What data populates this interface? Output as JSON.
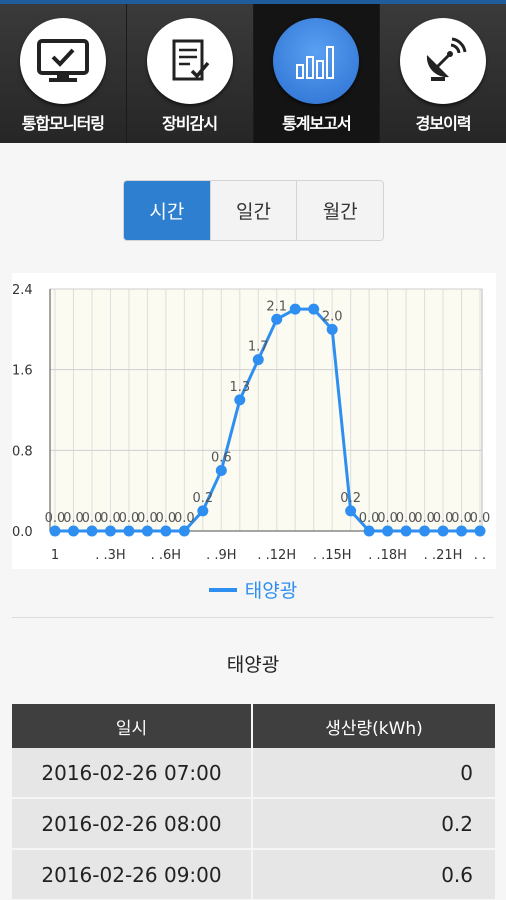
{
  "nav": {
    "items": [
      {
        "label": "통합모니터링",
        "icon": "monitor-check-icon",
        "active": false
      },
      {
        "label": "장비감시",
        "icon": "checklist-icon",
        "active": false
      },
      {
        "label": "통계보고서",
        "icon": "bar-chart-icon",
        "active": true
      },
      {
        "label": "경보이력",
        "icon": "satellite-dish-icon",
        "active": false
      }
    ]
  },
  "segment": {
    "tabs": [
      {
        "label": "시간",
        "active": true
      },
      {
        "label": "일간",
        "active": false
      },
      {
        "label": "월간",
        "active": false
      }
    ]
  },
  "colors": {
    "accent": "#2f7fd0",
    "series": "#2e8ff0",
    "nav_bg": "#2b2b2b",
    "header_bg": "#3f3f3f"
  },
  "chart_data": {
    "type": "line",
    "y_ticks": [
      "2.4",
      "1.6",
      "0.8",
      "0.0"
    ],
    "ylim": [
      0,
      2.4
    ],
    "x_tick_labels": [
      "1",
      ". .3H",
      ". .6H",
      ". .9H",
      ". .12H",
      ". .15H",
      ". .18H",
      ". .21H",
      ". ."
    ],
    "grid": true,
    "legend_position": "bottom",
    "series": [
      {
        "name": "태양광",
        "x": [
          0,
          1,
          2,
          3,
          4,
          5,
          6,
          7,
          8,
          9,
          10,
          11,
          12,
          13,
          14,
          15,
          16,
          17,
          18,
          19,
          20,
          21,
          22,
          23
        ],
        "values": [
          0.0,
          0.0,
          0.0,
          0.0,
          0.0,
          0.0,
          0.0,
          0.0,
          0.2,
          0.6,
          1.3,
          1.7,
          2.1,
          2.2,
          2.2,
          2.0,
          0.2,
          0.0,
          0.0,
          0.0,
          0.0,
          0.0,
          0.0,
          0.0
        ],
        "data_labels": [
          "0.0",
          "0.0",
          "0.0",
          "0.0",
          "0.0",
          "0.0",
          "0.0",
          "0.0",
          "0.2",
          "0.6",
          "1.3",
          "1.7",
          "2.1",
          "",
          "",
          "2.0",
          "0.2",
          "0.0",
          "0.0",
          "0.0",
          "0.0",
          "0.0",
          "0.0",
          "0.0"
        ]
      }
    ]
  },
  "legend": {
    "label": "태양광"
  },
  "table": {
    "title": "태양광",
    "headers": [
      "일시",
      "생산량(kWh)"
    ],
    "rows": [
      {
        "time": "2016-02-26 07:00",
        "value": "0"
      },
      {
        "time": "2016-02-26 08:00",
        "value": "0.2"
      },
      {
        "time": "2016-02-26 09:00",
        "value": "0.6"
      }
    ]
  }
}
